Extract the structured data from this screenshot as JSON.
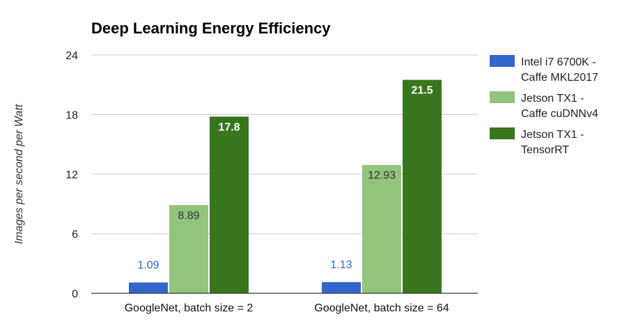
{
  "chart_data": {
    "type": "bar",
    "title": "Deep Learning Energy Efficiency",
    "xlabel": "",
    "ylabel": "Images per second per Watt",
    "ylim": [
      0,
      24
    ],
    "yticks": [
      {
        "value": 0,
        "label": "0"
      },
      {
        "value": 6,
        "label": "6"
      },
      {
        "value": 12,
        "label": "12"
      },
      {
        "value": 18,
        "label": "18"
      },
      {
        "value": 24,
        "label": "24"
      }
    ],
    "grid": true,
    "legend_position": "right",
    "categories": [
      "GoogleNet, batch size = 2",
      "GoogleNet, batch size = 64"
    ],
    "series": [
      {
        "name": "Intel i7 6700K - Caffe MKL2017",
        "legend_lines": [
          "Intel i7 6700K -",
          "Caffe MKL2017"
        ],
        "color": "#3366cc",
        "label_color": "#3366cc",
        "label_placement": "above",
        "label_bold": false,
        "values": [
          1.09,
          1.13
        ],
        "labels": [
          "1.09",
          "1.13"
        ]
      },
      {
        "name": "Jetson TX1 - Caffe cuDNNv4",
        "legend_lines": [
          "Jetson TX1 -",
          "Caffe cuDNNv4"
        ],
        "color": "#93c47d",
        "label_color": "#333333",
        "label_placement": "inside",
        "label_bold": false,
        "values": [
          8.89,
          12.93
        ],
        "labels": [
          "8.89",
          "12.93"
        ]
      },
      {
        "name": "Jetson TX1 - TensorRT",
        "legend_lines": [
          "Jetson TX1 -",
          "TensorRT"
        ],
        "color": "#38761d",
        "label_color": "#ffffff",
        "label_placement": "inside",
        "label_bold": true,
        "values": [
          17.8,
          21.5
        ],
        "labels": [
          "17.8",
          "21.5"
        ]
      }
    ]
  }
}
